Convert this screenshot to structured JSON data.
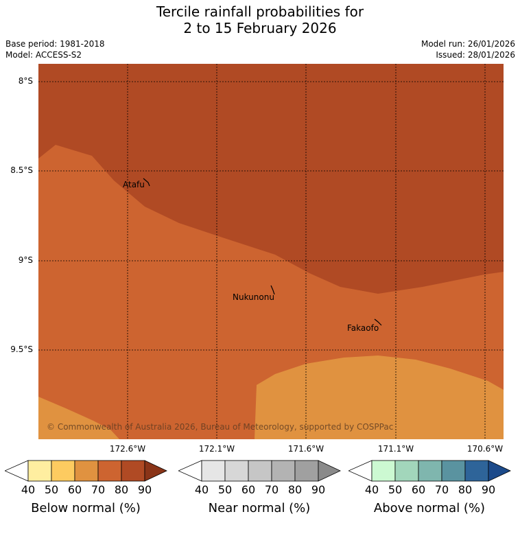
{
  "title_line1": "Tercile rainfall probabilities for",
  "title_line2": "2 to 15 February 2026",
  "base_period": "Base period: 1981-2018",
  "model": "Model: ACCESS-S2",
  "model_run": "Model run: 26/01/2026",
  "issued": "Issued: 28/01/2026",
  "latitude_labels": [
    "8°S",
    "8.5°S",
    "9°S",
    "9.5°S"
  ],
  "longitude_labels": [
    "172.6°W",
    "172.1°W",
    "171.6°W",
    "171.1°W",
    "170.6°W"
  ],
  "places": [
    "Atafu",
    "Nukunonu",
    "Fakaofo"
  ],
  "copyright": "© Commonwealth of Australia 2026, Bureau of Meteorology, supported by COSPPac",
  "legends": {
    "below": {
      "label": "Below normal (%)",
      "ticks": [
        "40",
        "50",
        "60",
        "70",
        "80",
        "90"
      ],
      "colors": [
        "#ffeea0",
        "#fdcb60",
        "#e09240",
        "#cd6430",
        "#b04a24",
        "#8a3418"
      ]
    },
    "near": {
      "label": "Near normal (%)",
      "ticks": [
        "40",
        "50",
        "60",
        "70",
        "80",
        "90"
      ],
      "colors": [
        "#e6e6e6",
        "#d7d7d7",
        "#c6c6c6",
        "#b3b3b3",
        "#a0a0a0",
        "#8a8a8a"
      ]
    },
    "above": {
      "label": "Above normal (%)",
      "ticks": [
        "40",
        "50",
        "60",
        "70",
        "80",
        "90"
      ],
      "colors": [
        "#ccf9d2",
        "#a2d6bb",
        "#7fb6ae",
        "#5a93a0",
        "#2e6499",
        "#1c4a8a"
      ]
    }
  },
  "map_colors": {
    "below_80_90": "#b04a24",
    "below_70_80": "#cd6430",
    "below_60_70": "#e09240"
  }
}
